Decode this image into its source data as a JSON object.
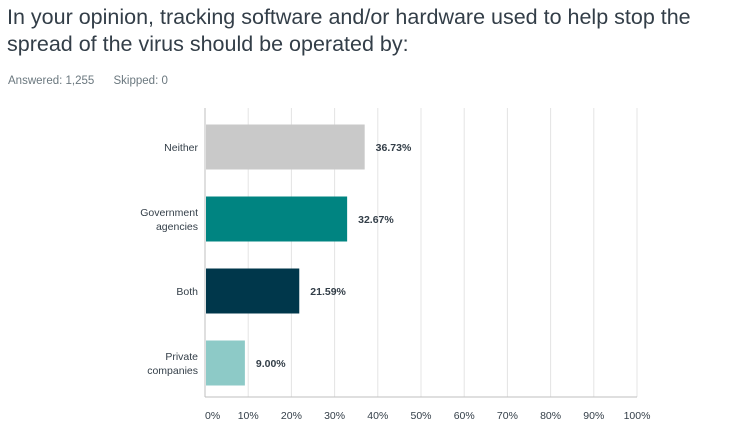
{
  "question": {
    "title": "In your opinion, tracking software and/or hardware used to help stop the spread of the virus should be operated by:"
  },
  "stats": {
    "answered_label": "Answered: 1,255",
    "skipped_label": "Skipped: 0"
  },
  "colors": {
    "grid": "#e4e4e4",
    "axis": "#bfbfbf"
  },
  "chart_data": {
    "type": "bar",
    "orientation": "horizontal",
    "title": "",
    "xlabel": "",
    "ylabel": "",
    "xlim": [
      0,
      100
    ],
    "grid": true,
    "categories": [
      {
        "label_lines": [
          "Neither"
        ],
        "value": 36.73,
        "value_label": "36.73%",
        "color": "#c9c9c9"
      },
      {
        "label_lines": [
          "Government",
          "agencies"
        ],
        "value": 32.67,
        "value_label": "32.67%",
        "color": "#008481"
      },
      {
        "label_lines": [
          "Both"
        ],
        "value": 21.59,
        "value_label": "21.59%",
        "color": "#00374b"
      },
      {
        "label_lines": [
          "Private",
          "companies"
        ],
        "value": 9.0,
        "value_label": "9.00%",
        "color": "#8dcac7"
      }
    ],
    "ticks": [
      0,
      10,
      20,
      30,
      40,
      50,
      60,
      70,
      80,
      90,
      100
    ],
    "tick_labels": [
      "0%",
      "10%",
      "20%",
      "30%",
      "40%",
      "50%",
      "60%",
      "70%",
      "80%",
      "90%",
      "100%"
    ]
  }
}
